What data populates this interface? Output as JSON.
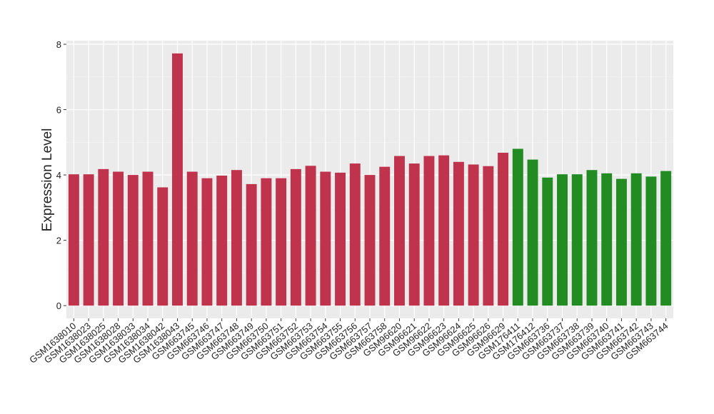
{
  "chart_data": {
    "type": "bar",
    "y_label": "Expression Level",
    "categories": [
      "GSM1638010",
      "GSM1638023",
      "GSM1638025",
      "GSM1638028",
      "GSM1638033",
      "GSM1638034",
      "GSM1638042",
      "GSM1638043",
      "GSM663745",
      "GSM663746",
      "GSM663747",
      "GSM663748",
      "GSM663749",
      "GSM663750",
      "GSM663751",
      "GSM663752",
      "GSM663753",
      "GSM663754",
      "GSM663755",
      "GSM663756",
      "GSM663757",
      "GSM663758",
      "GSM96620",
      "GSM96621",
      "GSM96622",
      "GSM96623",
      "GSM96624",
      "GSM96625",
      "GSM96626",
      "GSM96629",
      "GSM176411",
      "GSM176412",
      "GSM663736",
      "GSM663737",
      "GSM663738",
      "GSM663739",
      "GSM663740",
      "GSM663741",
      "GSM663742",
      "GSM663743",
      "GSM663744"
    ],
    "values": [
      4.02,
      4.02,
      4.18,
      4.1,
      4.0,
      4.1,
      3.62,
      7.72,
      4.1,
      3.9,
      3.98,
      4.15,
      3.72,
      3.9,
      3.9,
      4.18,
      4.28,
      4.1,
      4.07,
      4.35,
      4.0,
      4.25,
      4.58,
      4.35,
      4.58,
      4.6,
      4.4,
      4.32,
      4.27,
      4.68,
      4.8,
      4.47,
      3.92,
      4.02,
      4.02,
      4.15,
      4.05,
      3.88,
      4.05,
      3.95,
      4.12
    ],
    "colors": [
      "#c0334d",
      "#c0334d",
      "#c0334d",
      "#c0334d",
      "#c0334d",
      "#c0334d",
      "#c0334d",
      "#c0334d",
      "#c0334d",
      "#c0334d",
      "#c0334d",
      "#c0334d",
      "#c0334d",
      "#c0334d",
      "#c0334d",
      "#c0334d",
      "#c0334d",
      "#c0334d",
      "#c0334d",
      "#c0334d",
      "#c0334d",
      "#c0334d",
      "#c0334d",
      "#c0334d",
      "#c0334d",
      "#c0334d",
      "#c0334d",
      "#c0334d",
      "#c0334d",
      "#c0334d",
      "#228b22",
      "#228b22",
      "#228b22",
      "#228b22",
      "#228b22",
      "#228b22",
      "#228b22",
      "#228b22",
      "#228b22",
      "#228b22",
      "#228b22"
    ],
    "ylim": [
      -0.39,
      8.11
    ],
    "yticks": [
      0,
      2,
      4,
      6,
      8
    ],
    "minor_yticks": [
      1,
      3,
      5,
      7
    ],
    "grid": true
  }
}
